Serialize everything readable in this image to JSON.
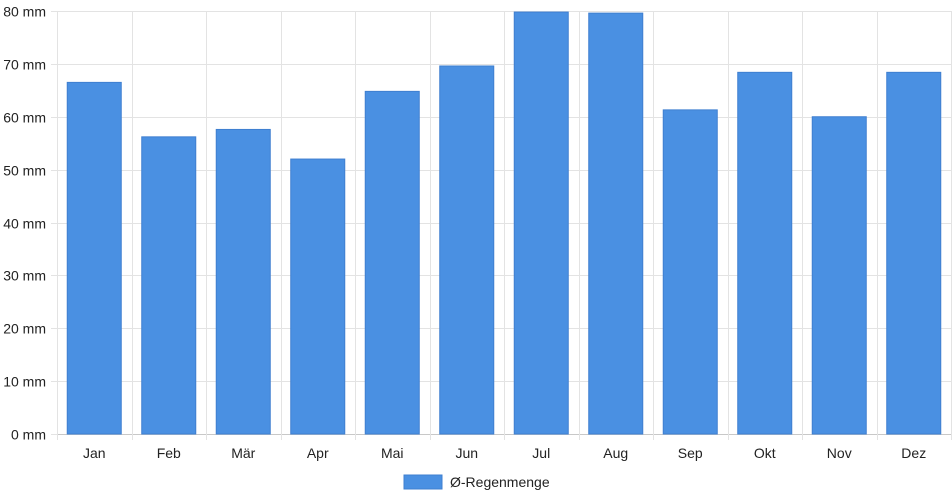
{
  "chart_data": {
    "type": "bar",
    "categories": [
      "Jan",
      "Feb",
      "Mär",
      "Apr",
      "Mai",
      "Jun",
      "Jul",
      "Aug",
      "Sep",
      "Okt",
      "Nov",
      "Dez"
    ],
    "series": [
      {
        "name": "Ø-Regenmenge",
        "values": [
          66.5,
          56.2,
          57.6,
          52.0,
          64.8,
          69.6,
          79.8,
          79.6,
          61.3,
          68.4,
          60.0,
          68.4
        ],
        "color": "#4a90e2"
      }
    ],
    "title": "",
    "xlabel": "",
    "ylabel": "",
    "ylim": [
      0,
      80
    ],
    "yticks": [
      0,
      10,
      20,
      30,
      40,
      50,
      60,
      70,
      80
    ],
    "ytick_labels": [
      "0 mm",
      "10 mm",
      "20 mm",
      "30 mm",
      "40 mm",
      "50 mm",
      "60 mm",
      "70 mm",
      "80 mm"
    ],
    "grid": true,
    "legend_position": "bottom-center",
    "gridline_color": "#e3e3e3",
    "axis_color": "#c8c8c8"
  }
}
